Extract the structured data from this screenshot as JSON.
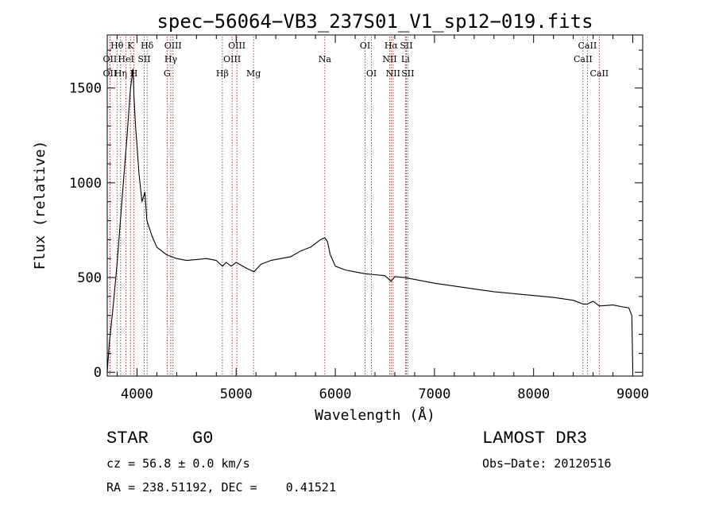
{
  "chart_data": {
    "type": "line",
    "title": "spec−56064−VB3_237S01_V1_sp12−019.fits",
    "xlabel": "Wavelength (Å)",
    "ylabel": "Flux (relative)",
    "xlim": [
      3700,
      9100
    ],
    "ylim": [
      -20,
      1780
    ],
    "x_ticks": [
      4000,
      5000,
      6000,
      7000,
      8000,
      9000
    ],
    "y_ticks": [
      0,
      500,
      1000,
      1500
    ],
    "x_minor_step": 200,
    "y_minor_step": 100,
    "grid": false,
    "line_color": "#000000",
    "line_marker_color": "#8b1a1a",
    "series": [
      {
        "name": "flux",
        "x": [
          3700,
          3720,
          3760,
          3800,
          3840,
          3870,
          3900,
          3920,
          3935,
          3950,
          3960,
          3970,
          3985,
          4000,
          4020,
          4050,
          4080,
          4100,
          4150,
          4200,
          4250,
          4300,
          4350,
          4400,
          4500,
          4600,
          4700,
          4800,
          4862,
          4900,
          4950,
          5000,
          5100,
          5180,
          5250,
          5350,
          5450,
          5550,
          5650,
          5750,
          5850,
          5893,
          5920,
          5950,
          6000,
          6050,
          6100,
          6200,
          6300,
          6400,
          6500,
          6563,
          6600,
          6700,
          6800,
          7000,
          7200,
          7400,
          7600,
          7800,
          8000,
          8200,
          8400,
          8498,
          8542,
          8600,
          8662,
          8800,
          8900,
          8960,
          8990,
          9000
        ],
        "y": [
          0,
          150,
          350,
          580,
          850,
          1050,
          1250,
          1400,
          1500,
          1560,
          1600,
          1450,
          1300,
          1200,
          1050,
          900,
          950,
          800,
          720,
          660,
          640,
          620,
          610,
          600,
          590,
          595,
          600,
          590,
          560,
          580,
          560,
          580,
          550,
          530,
          570,
          590,
          600,
          610,
          640,
          660,
          700,
          710,
          690,
          620,
          560,
          550,
          540,
          530,
          520,
          515,
          510,
          480,
          505,
          500,
          490,
          470,
          455,
          440,
          425,
          415,
          405,
          395,
          380,
          360,
          360,
          375,
          350,
          355,
          345,
          340,
          300,
          10
        ]
      }
    ],
    "line_markers": [
      {
        "x": 3727,
        "label": "OII",
        "row": 2
      },
      {
        "x": 3727,
        "label": "OII",
        "row": 3
      },
      {
        "x": 3798,
        "label": "Hθ",
        "row": 1
      },
      {
        "x": 3835,
        "label": "Hη",
        "row": 3
      },
      {
        "x": 3889,
        "label": "HeI",
        "row": 2
      },
      {
        "x": 3934,
        "label": "K",
        "row": 1
      },
      {
        "x": 3969,
        "label": "H",
        "row": 3
      },
      {
        "x": 4072,
        "label": "SII",
        "row": 2
      },
      {
        "x": 4102,
        "label": "Hδ",
        "row": 1
      },
      {
        "x": 4304,
        "label": "G",
        "row": 3
      },
      {
        "x": 4341,
        "label": "Hγ",
        "row": 2
      },
      {
        "x": 4363,
        "label": "OIII",
        "row": 1
      },
      {
        "x": 4861,
        "label": "Hβ",
        "row": 3
      },
      {
        "x": 4959,
        "label": "OIII",
        "row": 2
      },
      {
        "x": 5007,
        "label": "OIII",
        "row": 1
      },
      {
        "x": 5175,
        "label": "Mg",
        "row": 3
      },
      {
        "x": 5894,
        "label": "Na",
        "row": 2
      },
      {
        "x": 6300,
        "label": "OI",
        "row": 1
      },
      {
        "x": 6364,
        "label": "OI",
        "row": 3
      },
      {
        "x": 6548,
        "label": "NII",
        "row": 2
      },
      {
        "x": 6563,
        "label": "Hα",
        "row": 1
      },
      {
        "x": 6583,
        "label": "NII",
        "row": 3
      },
      {
        "x": 6707,
        "label": "Li",
        "row": 2
      },
      {
        "x": 6716,
        "label": "SII",
        "row": 1
      },
      {
        "x": 6731,
        "label": "SII",
        "row": 3
      },
      {
        "x": 8498,
        "label": "CaII",
        "row": 2
      },
      {
        "x": 8542,
        "label": "CaII",
        "row": 1
      },
      {
        "x": 8662,
        "label": "CaII",
        "row": 3
      }
    ]
  },
  "info": {
    "class_label": "STAR",
    "subclass_label": "G0",
    "survey_label": "LAMOST DR3",
    "redshift_text": "cz = 56.8 ± 0.0 km/s",
    "obs_date_text": "Obs−Date: 20120516",
    "coords_text": "RA = 238.51192, DEC =    0.41521"
  }
}
